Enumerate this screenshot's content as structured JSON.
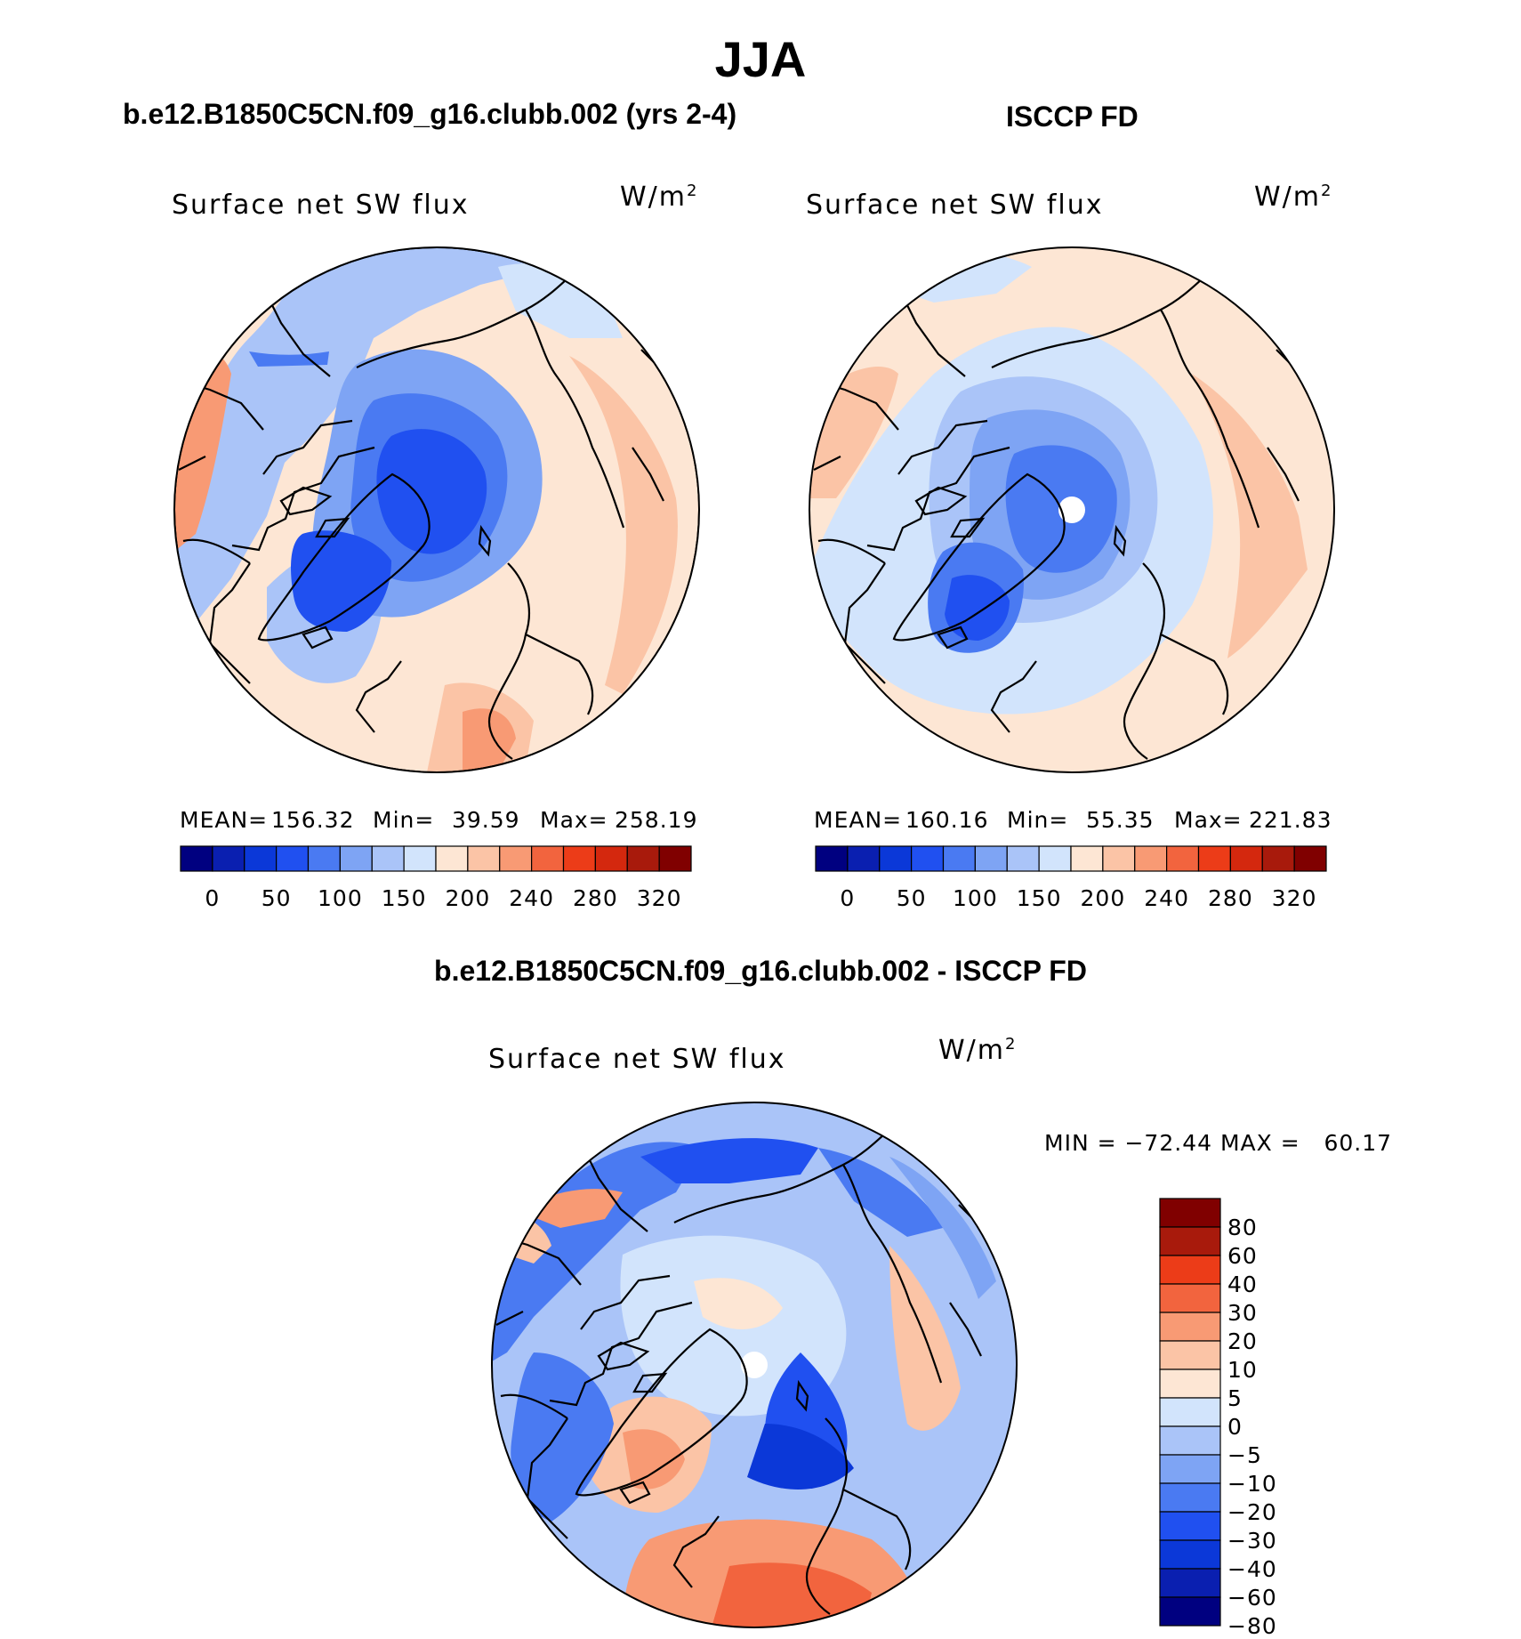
{
  "figure": {
    "season": "JJA",
    "colors": {
      "palette12": [
        "#000080",
        "#0a1fb0",
        "#0b38d8",
        "#2050f0",
        "#4a7af2",
        "#7ea4f4",
        "#aac4f8",
        "#d2e4fc",
        "#fde6d4",
        "#fbc4a6",
        "#f89a74",
        "#f2643e",
        "#ec3c18",
        "#d4280e",
        "#a81a0c",
        "#800000"
      ],
      "palette_diff": [
        "#000080",
        "#0a1fb0",
        "#0b38d8",
        "#2050f0",
        "#4a7af2",
        "#7ea4f4",
        "#aac4f8",
        "#d2e4fc",
        "#fde6d4",
        "#fbc4a6",
        "#f89a74",
        "#f2643e",
        "#ec3c18",
        "#a81a0c",
        "#800000"
      ],
      "missing": "#ffffff"
    },
    "panels": [
      {
        "id": "model",
        "heading": "b.e12.B1850C5CN.f09_g16.clubb.002 (yrs 2-4)",
        "variable": "Surface net SW flux",
        "units_base": "W/m",
        "units_exp": "2",
        "mean_label": "MEAN=",
        "mean": "156.32",
        "min_label": "Min=",
        "min": "39.59",
        "max_label": "Max=",
        "max": "258.19",
        "colorbar_labels": [
          "0",
          "50",
          "100",
          "150",
          "200",
          "240",
          "280",
          "320"
        ]
      },
      {
        "id": "obs",
        "heading": "ISCCP FD",
        "variable": "Surface net SW flux",
        "units_base": "W/m",
        "units_exp": "2",
        "mean_label": "MEAN=",
        "mean": "160.16",
        "min_label": "Min=",
        "min": "55.35",
        "max_label": "Max=",
        "max": "221.83",
        "colorbar_labels": [
          "0",
          "50",
          "100",
          "150",
          "200",
          "240",
          "280",
          "320"
        ]
      }
    ],
    "difference": {
      "heading": "b.e12.B1850C5CN.f09_g16.clubb.002 - ISCCP FD",
      "variable": "Surface net SW flux",
      "units_base": "W/m",
      "units_exp": "2",
      "minmax": "MIN = −72.44 MAX =   60.17",
      "colorbar_labels": [
        "80",
        "60",
        "40",
        "30",
        "20",
        "10",
        "5",
        "0",
        "−5",
        "−10",
        "−20",
        "−30",
        "−40",
        "−60",
        "−80"
      ]
    }
  }
}
